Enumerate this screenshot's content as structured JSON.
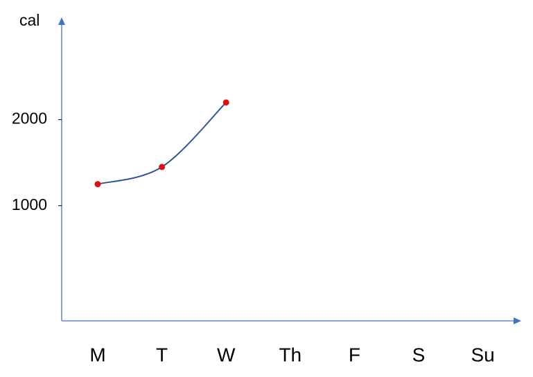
{
  "chart_data": {
    "type": "line",
    "y_label": "cal",
    "categories": [
      "M",
      "T",
      "W",
      "Th",
      "F",
      "S",
      "Su"
    ],
    "values": [
      1250,
      1450,
      2200,
      null,
      null,
      null,
      null
    ],
    "color": "#2f5597",
    "marker_color": "#e01010",
    "axis_color": "#4472c4",
    "ylim": [
      -340,
      3190
    ],
    "yticks": [
      1000,
      2000
    ],
    "smooth": true,
    "grid": false
  }
}
